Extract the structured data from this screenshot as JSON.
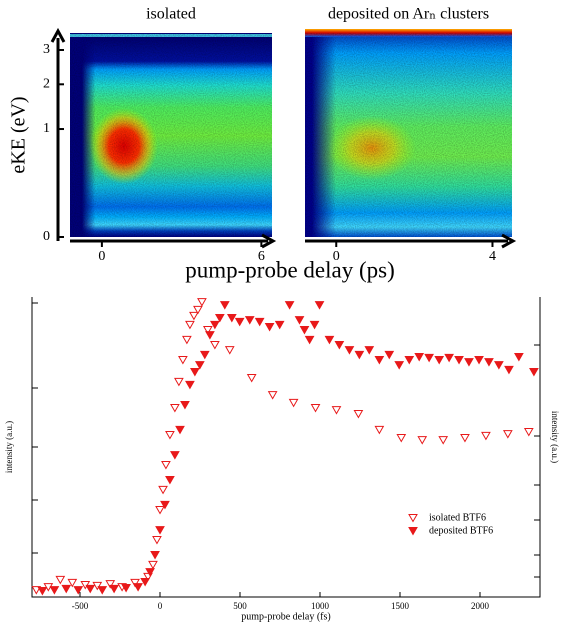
{
  "chart_data": [
    {
      "type": "heatmap",
      "title": "isolated",
      "ylabel": "eKE (eV)",
      "xlabel": "pump-probe delay (ps)",
      "xlim": [
        -1.2,
        6.4
      ],
      "xticks": [
        0,
        6
      ],
      "ylim": [
        0,
        3.5
      ],
      "yticks": [
        0,
        1,
        2,
        3
      ],
      "yscale": "sqrt"
    },
    {
      "type": "heatmap",
      "title": "deposited on Arₙ clusters",
      "xlim": [
        -0.8,
        4.5
      ],
      "xticks": [
        0,
        4
      ]
    },
    {
      "type": "scatter",
      "xlabel": "pump-probe delay (fs)",
      "ylabel": "intensity (a.u.)",
      "y2label": "intensity (a.u.)",
      "xlim": [
        -800,
        2375
      ],
      "xticks": [
        -500,
        0,
        500,
        1000,
        1500,
        2000
      ],
      "ylim": [
        0,
        100
      ],
      "legend": "lower right",
      "series": [
        {
          "name": "isolated BTF6",
          "color": "#e8191a",
          "filled": false,
          "x": [
            -773,
            -698,
            -623,
            -548,
            -467,
            -392,
            -311,
            -237,
            -156,
            -75,
            -44,
            -19,
            0,
            19,
            37,
            62,
            93,
            118,
            143,
            168,
            187,
            212,
            237,
            262,
            299,
            343,
            436,
            573,
            704,
            835,
            972,
            1103,
            1240,
            1371,
            1508,
            1639,
            1770,
            1906,
            2037,
            2174,
            2305
          ],
          "values": [
            2.3,
            3.3,
            5.7,
            4.7,
            4,
            3.7,
            4.3,
            3.3,
            4.7,
            6.7,
            10.7,
            19,
            29,
            35.7,
            44,
            54,
            63,
            71.7,
            79,
            85.7,
            90.7,
            93.7,
            95.7,
            98.3,
            89,
            84,
            82.3,
            73,
            67.3,
            64.7,
            63,
            62.3,
            61,
            55.7,
            53,
            52.3,
            52.3,
            53,
            53.7,
            54.3,
            55
          ]
        },
        {
          "name": "deposited BTF6",
          "color": "#e8191a",
          "filled": true,
          "x": [
            -735,
            -660,
            -586,
            -511,
            -436,
            -361,
            -287,
            -212,
            -137,
            -93,
            -62,
            -31,
            0,
            31,
            62,
            93,
            125,
            156,
            187,
            218,
            249,
            280,
            312,
            343,
            374,
            405,
            449,
            498,
            561,
            623,
            685,
            748,
            810,
            872,
            903,
            935,
            966,
            997,
            1059,
            1121,
            1184,
            1246,
            1308,
            1371,
            1433,
            1495,
            1558,
            1620,
            1682,
            1745,
            1807,
            1869,
            1931,
            1994,
            2056,
            2118,
            2181,
            2243,
            2337
          ],
          "values": [
            2,
            2.3,
            2.7,
            2.3,
            2.7,
            2.3,
            2.7,
            3,
            3.3,
            5,
            8.3,
            14,
            22.3,
            30.7,
            39,
            47.3,
            55.7,
            64,
            70.7,
            75,
            77.3,
            80.7,
            87.3,
            90.7,
            93,
            97.3,
            93,
            91.7,
            92.3,
            91.7,
            90,
            90.7,
            97.3,
            92.3,
            89,
            85.7,
            90.7,
            97.3,
            85.7,
            84,
            82.3,
            80.7,
            82.3,
            79,
            80.7,
            77.3,
            79,
            80,
            79.7,
            79,
            79.7,
            79,
            78.3,
            79,
            78.3,
            77.3,
            75.7,
            80,
            75
          ]
        }
      ]
    }
  ]
}
